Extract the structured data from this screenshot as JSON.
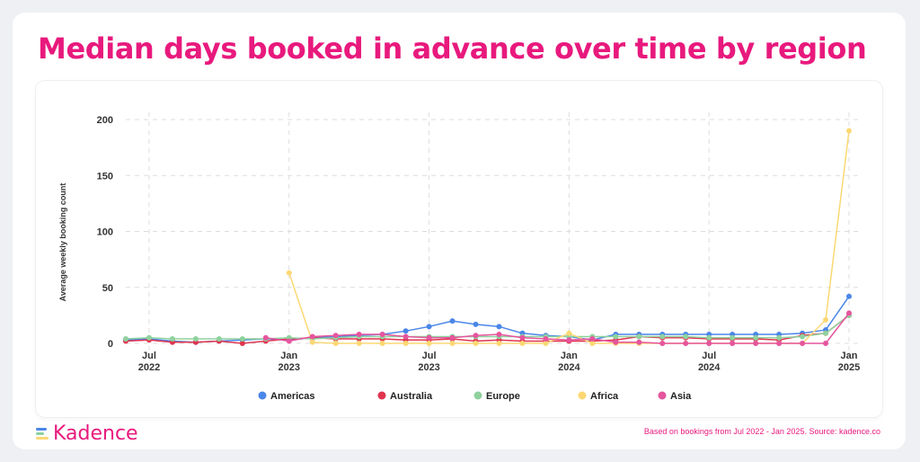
{
  "page": {
    "title": "Median days booked in advance over time by region"
  },
  "footer": {
    "logo_text": "Kadence",
    "note": "Based on bookings from Jul 2022 - Jan 2025. Source: kadence.co"
  },
  "chart_data": {
    "type": "line",
    "title": "Median days booked in advance over time by region",
    "xlabel": "",
    "ylabel": "Average weekly booking count",
    "ylim": [
      0,
      200
    ],
    "yticks": [
      0,
      50,
      100,
      150,
      200
    ],
    "x_ticks": [
      {
        "line1": "Jul",
        "line2": "2022",
        "x": 1
      },
      {
        "line1": "Jan",
        "line2": "2023",
        "x": 7
      },
      {
        "line1": "Jul",
        "line2": "2023",
        "x": 13
      },
      {
        "line1": "Jan",
        "line2": "2024",
        "x": 19
      },
      {
        "line1": "Jul",
        "line2": "2024",
        "x": 25
      },
      {
        "line1": "Jan",
        "line2": "2025",
        "x": 31
      }
    ],
    "x": [
      0,
      1,
      2,
      3,
      4,
      5,
      6,
      7,
      8,
      9,
      10,
      11,
      12,
      13,
      14,
      15,
      16,
      17,
      18,
      19,
      20,
      21,
      22,
      23,
      24,
      25,
      26,
      27,
      28,
      29,
      30,
      31
    ],
    "x_unit": "months from Jun 2022",
    "grid": true,
    "legend_position": "bottom",
    "series": [
      {
        "name": "Americas",
        "color": "#4a86e8",
        "values": [
          3,
          4,
          2,
          1,
          2,
          3,
          4,
          3,
          5,
          6,
          7,
          8,
          11,
          15,
          20,
          17,
          15,
          9,
          7,
          6,
          3,
          8,
          8,
          8,
          8,
          8,
          8,
          8,
          8,
          9,
          12,
          42
        ]
      },
      {
        "name": "Australia",
        "color": "#e0344f",
        "values": [
          2,
          3,
          1,
          1,
          2,
          0,
          2,
          4,
          5,
          4,
          4,
          4,
          3,
          3,
          4,
          2,
          3,
          2,
          2,
          2,
          2,
          3,
          6,
          5,
          5,
          4,
          4,
          4,
          3,
          7,
          9,
          25
        ]
      },
      {
        "name": "Europe",
        "color": "#8fd19e",
        "values": [
          4,
          5,
          4,
          4,
          4,
          4,
          4,
          5,
          4,
          5,
          6,
          6,
          6,
          6,
          6,
          6,
          6,
          6,
          6,
          6,
          6,
          6,
          6,
          6,
          6,
          5,
          5,
          5,
          5,
          6,
          9,
          25
        ]
      },
      {
        "name": "Africa",
        "color": "#fcd874",
        "values": [
          null,
          null,
          null,
          null,
          null,
          null,
          null,
          63,
          1,
          0,
          0,
          0,
          0,
          0,
          0,
          0,
          0,
          0,
          0,
          9,
          0,
          0,
          0,
          0,
          0,
          0,
          0,
          0,
          0,
          0,
          21,
          190
        ]
      },
      {
        "name": "Asia",
        "color": "#e6559e",
        "values": [
          null,
          null,
          null,
          null,
          null,
          null,
          5,
          2,
          6,
          7,
          8,
          8,
          6,
          5,
          5,
          7,
          8,
          5,
          4,
          3,
          4,
          1,
          1,
          0,
          0,
          0,
          0,
          0,
          0,
          0,
          0,
          27
        ]
      }
    ]
  },
  "colors": {
    "brand": "#e8197d",
    "grid": "#dddddd"
  }
}
